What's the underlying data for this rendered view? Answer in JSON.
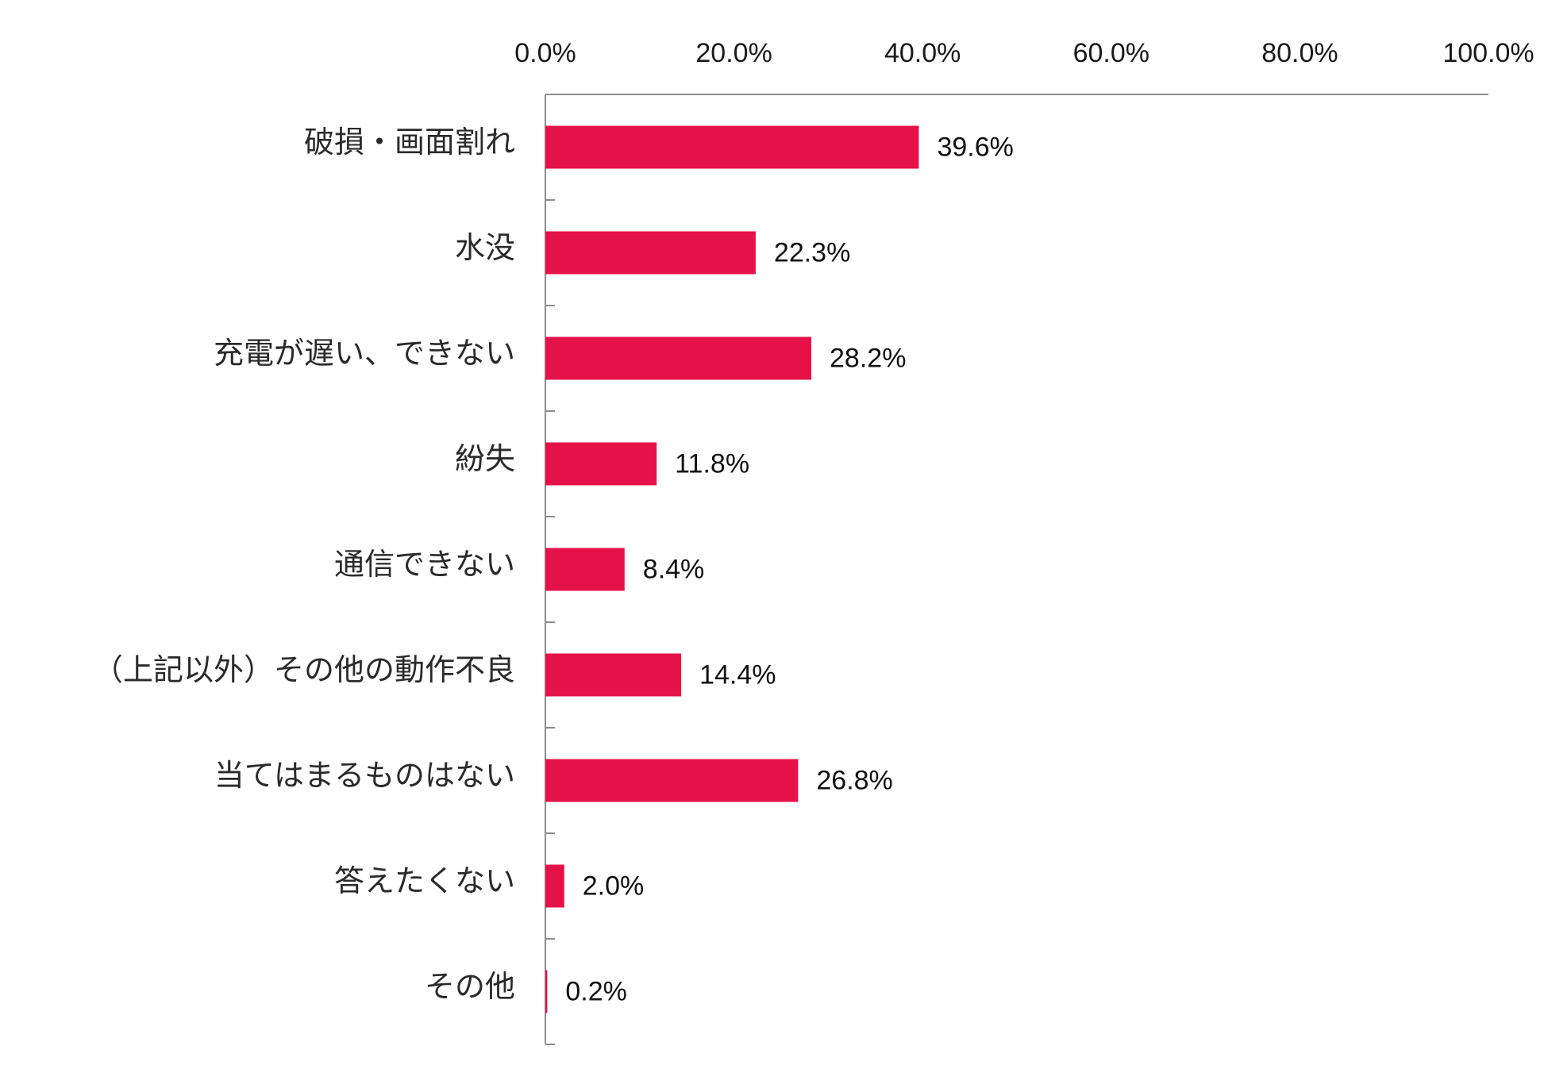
{
  "chart_data": {
    "type": "bar",
    "orientation": "horizontal",
    "categories": [
      "破損・画面割れ",
      "水没",
      "充電が遅い、できない",
      "紛失",
      "通信できない",
      "（上記以外）その他の動作不良",
      "当てはまるものはない",
      "答えたくない",
      "その他"
    ],
    "values": [
      39.6,
      22.3,
      28.2,
      11.8,
      8.4,
      14.4,
      26.8,
      2.0,
      0.2
    ],
    "value_labels": [
      "39.6%",
      "22.3%",
      "28.2%",
      "11.8%",
      "8.4%",
      "14.4%",
      "26.8%",
      "2.0%",
      "0.2%"
    ],
    "x_ticks": [
      "0.0%",
      "20.0%",
      "40.0%",
      "60.0%",
      "80.0%",
      "100.0%"
    ],
    "xlim": [
      0,
      100
    ],
    "x_axis_position": "top",
    "grid": false,
    "legend": "none",
    "colors": {
      "bar": "#e5124a",
      "axis": "#8c8c8c"
    }
  }
}
